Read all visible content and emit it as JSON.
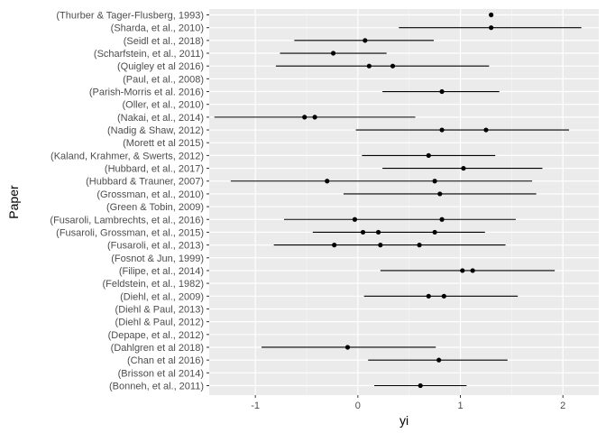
{
  "chart_data": {
    "type": "scatter",
    "title": "",
    "xlabel": "yi",
    "ylabel": "Paper",
    "xlim": [
      -1.45,
      2.35
    ],
    "x_ticks": [
      -1,
      0,
      1,
      2
    ],
    "x_tick_labels": [
      "-1",
      "0",
      "1",
      "2"
    ],
    "grid": true,
    "categories": [
      "(Thurber & Tager-Flusberg, 1993)",
      "(Sharda, et al., 2010)",
      "(Seidl et al., 2018)",
      "(Scharfstein, et al., 2011)",
      "(Quigley et al 2016)",
      "(Paul, et al., 2008)",
      "(Parish-Morris et al. 2016)",
      "(Oller, et al., 2010)",
      "(Nakai, et al., 2014)",
      "(Nadig & Shaw, 2012)",
      "(Morett et al 2015)",
      "(Kaland, Krahmer, & Swerts, 2012)",
      "(Hubbard, et al., 2017)",
      "(Hubbard & Trauner, 2007)",
      "(Grossman, et al., 2010)",
      "(Green & Tobin, 2009)",
      "(Fusaroli, Lambrechts, et al., 2016)",
      "(Fusaroli, Grossman, et al., 2015)",
      "(Fusaroli, et al., 2013)",
      "(Fosnot & Jun, 1999)",
      "(Filipe, et al., 2014)",
      "(Feldstein, et al., 1982)",
      "(Diehl, et al., 2009)",
      "(Diehl & Paul, 2013)",
      "(Diehl & Paul, 2012)",
      "(Depape, et al., 2012)",
      "(Dahlgren et al 2018)",
      "(Chan et al 2016)",
      "(Brisson et al 2014)",
      "(Bonneh, et al., 2011)"
    ],
    "intervals": [
      {
        "paper": "(Sharda, et al., 2010)",
        "lo": 0.4,
        "hi": 2.18
      },
      {
        "paper": "(Seidl et al., 2018)",
        "lo": -0.62,
        "hi": 0.74
      },
      {
        "paper": "(Scharfstein, et al., 2011)",
        "lo": -0.76,
        "hi": 0.28
      },
      {
        "paper": "(Quigley et al 2016)",
        "lo": -0.8,
        "hi": 1.28
      },
      {
        "paper": "(Parish-Morris et al. 2016)",
        "lo": 0.24,
        "hi": 1.38
      },
      {
        "paper": "(Nakai, et al., 2014)",
        "lo": -1.4,
        "hi": 0.56
      },
      {
        "paper": "(Nadig & Shaw, 2012)",
        "lo": -0.02,
        "hi": 2.06
      },
      {
        "paper": "(Kaland, Krahmer, & Swerts, 2012)",
        "lo": 0.04,
        "hi": 1.34
      },
      {
        "paper": "(Hubbard, et al., 2017)",
        "lo": 0.24,
        "hi": 1.8
      },
      {
        "paper": "(Hubbard & Trauner, 2007)",
        "lo": -1.24,
        "hi": 1.7
      },
      {
        "paper": "(Grossman, et al., 2010)",
        "lo": -0.14,
        "hi": 1.74
      },
      {
        "paper": "(Fusaroli, Lambrechts, et al., 2016)",
        "lo": -0.72,
        "hi": 1.54
      },
      {
        "paper": "(Fusaroli, Grossman, et al., 2015)",
        "lo": -0.44,
        "hi": 1.24
      },
      {
        "paper": "(Fusaroli, et al., 2013)",
        "lo": -0.82,
        "hi": 1.44
      },
      {
        "paper": "(Filipe, et al., 2014)",
        "lo": 0.22,
        "hi": 1.92
      },
      {
        "paper": "(Diehl, et al., 2009)",
        "lo": 0.06,
        "hi": 1.56
      },
      {
        "paper": "(Dahlgren et al 2018)",
        "lo": -0.94,
        "hi": 0.76
      },
      {
        "paper": "(Chan et al 2016)",
        "lo": 0.1,
        "hi": 1.46
      },
      {
        "paper": "(Bonneh, et al., 2011)",
        "lo": 0.16,
        "hi": 1.06
      }
    ],
    "points": [
      {
        "paper": "(Thurber & Tager-Flusberg, 1993)",
        "yi": 1.3
      },
      {
        "paper": "(Sharda, et al., 2010)",
        "yi": 1.3
      },
      {
        "paper": "(Seidl et al., 2018)",
        "yi": 0.07
      },
      {
        "paper": "(Scharfstein, et al., 2011)",
        "yi": -0.24
      },
      {
        "paper": "(Quigley et al 2016)",
        "yi": 0.11
      },
      {
        "paper": "(Quigley et al 2016)",
        "yi": 0.34
      },
      {
        "paper": "(Parish-Morris et al. 2016)",
        "yi": 0.82
      },
      {
        "paper": "(Nakai, et al., 2014)",
        "yi": -0.52
      },
      {
        "paper": "(Nakai, et al., 2014)",
        "yi": -0.42
      },
      {
        "paper": "(Nadig & Shaw, 2012)",
        "yi": 0.82
      },
      {
        "paper": "(Nadig & Shaw, 2012)",
        "yi": 1.25
      },
      {
        "paper": "(Kaland, Krahmer, & Swerts, 2012)",
        "yi": 0.69
      },
      {
        "paper": "(Hubbard, et al., 2017)",
        "yi": 1.03
      },
      {
        "paper": "(Hubbard & Trauner, 2007)",
        "yi": -0.3
      },
      {
        "paper": "(Hubbard & Trauner, 2007)",
        "yi": 0.75
      },
      {
        "paper": "(Grossman, et al., 2010)",
        "yi": 0.8
      },
      {
        "paper": "(Fusaroli, Lambrechts, et al., 2016)",
        "yi": -0.03
      },
      {
        "paper": "(Fusaroli, Lambrechts, et al., 2016)",
        "yi": 0.82
      },
      {
        "paper": "(Fusaroli, Grossman, et al., 2015)",
        "yi": 0.05
      },
      {
        "paper": "(Fusaroli, Grossman, et al., 2015)",
        "yi": 0.2
      },
      {
        "paper": "(Fusaroli, Grossman, et al., 2015)",
        "yi": 0.75
      },
      {
        "paper": "(Fusaroli, et al., 2013)",
        "yi": -0.23
      },
      {
        "paper": "(Fusaroli, et al., 2013)",
        "yi": 0.22
      },
      {
        "paper": "(Fusaroli, et al., 2013)",
        "yi": 0.6
      },
      {
        "paper": "(Filipe, et al., 2014)",
        "yi": 1.02
      },
      {
        "paper": "(Filipe, et al., 2014)",
        "yi": 1.12
      },
      {
        "paper": "(Diehl, et al., 2009)",
        "yi": 0.69
      },
      {
        "paper": "(Diehl, et al., 2009)",
        "yi": 0.84
      },
      {
        "paper": "(Dahlgren et al 2018)",
        "yi": -0.1
      },
      {
        "paper": "(Chan et al 2016)",
        "yi": 0.79
      },
      {
        "paper": "(Bonneh, et al., 2011)",
        "yi": 0.61
      }
    ],
    "colors": {
      "panel": "#ebebeb",
      "grid_major": "#ffffff",
      "grid_minor": "#f5f5f5",
      "tick": "#333333",
      "tick_text": "#4d4d4d",
      "mark": "#000000"
    }
  }
}
